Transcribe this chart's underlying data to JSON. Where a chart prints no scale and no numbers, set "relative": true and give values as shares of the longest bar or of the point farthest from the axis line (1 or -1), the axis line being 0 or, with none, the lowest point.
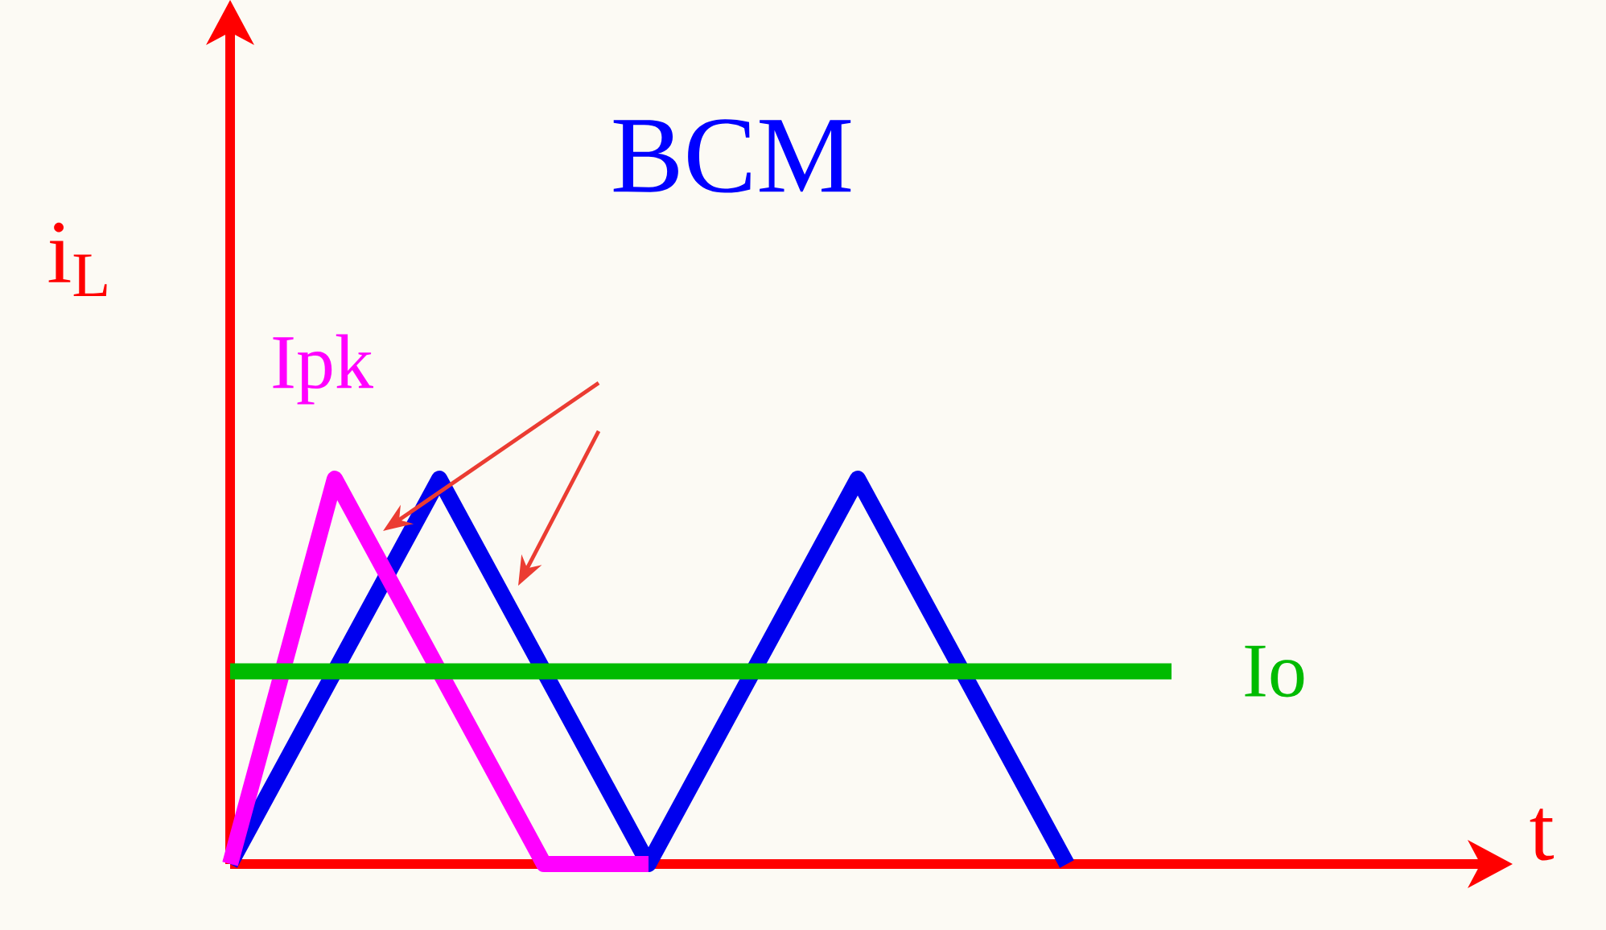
{
  "chart_data": {
    "type": "line",
    "title": "BCM",
    "xlabel": "t",
    "ylabel": "i$_{L}$",
    "relative": true,
    "marker": "none",
    "line_style": "solid",
    "categories": [
      null,
      null,
      null,
      null,
      null,
      null,
      null,
      null,
      null,
      null
    ],
    "series": [
      {
        "color": "#0000ee",
        "values": [
          0,
          0.5,
          1,
          0.5,
          0,
          0.5,
          1,
          0.5,
          0,
          null
        ]
      },
      {
        "color": "#ff00ff",
        "values": [
          0,
          1,
          0.5,
          0,
          0,
          null,
          null,
          null,
          null,
          null
        ]
      },
      {
        "color": "#00bb00",
        "values": [
          0.5,
          0.5,
          0.5,
          0.5,
          0.5,
          0.5,
          0.5,
          0.5,
          0.5,
          0.5
        ]
      }
    ],
    "annotations": [
      "Ipk",
      "Io"
    ]
  }
}
